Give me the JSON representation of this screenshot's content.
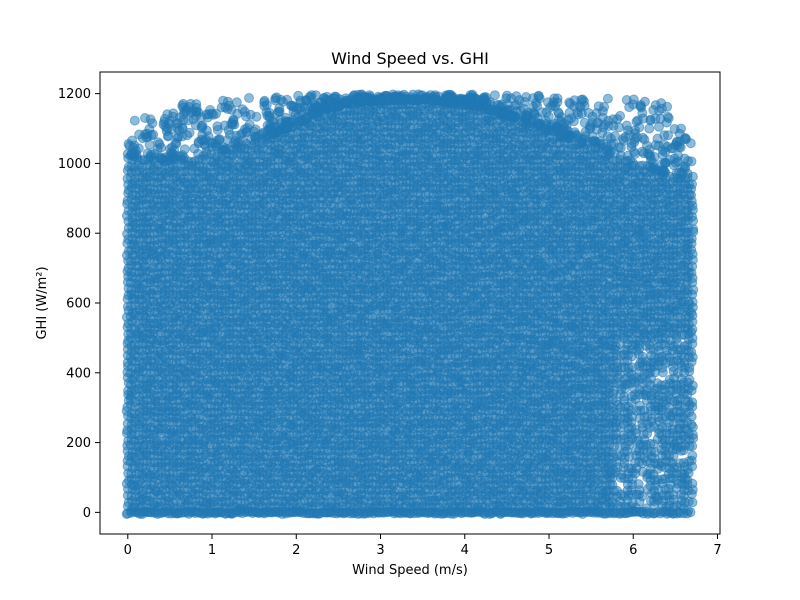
{
  "chart_data": {
    "type": "scatter",
    "title": "Wind Speed vs. GHI",
    "xlabel": "Wind Speed (m/s)",
    "ylabel": "GHI (W/m²)",
    "xlim": [
      -0.33,
      7.03
    ],
    "ylim": [
      -62,
      1262
    ],
    "xticks": [
      0,
      1,
      2,
      3,
      4,
      5,
      6,
      7
    ],
    "yticks": [
      0,
      200,
      400,
      600,
      800,
      1000,
      1200
    ],
    "grid": false,
    "legend": "none",
    "series": [
      {
        "color": "#1f77b4",
        "alpha": 0.5,
        "marker": "circle",
        "x_range": [
          0,
          6.7
        ],
        "y_range": [
          0,
          1200
        ],
        "upper_envelope": [
          [
            0.0,
            1125
          ],
          [
            0.2,
            1130
          ],
          [
            0.4,
            1150
          ],
          [
            0.6,
            1170
          ],
          [
            0.8,
            1175
          ],
          [
            1.0,
            1180
          ],
          [
            1.2,
            1185
          ],
          [
            1.4,
            1190
          ],
          [
            1.6,
            1192
          ],
          [
            1.8,
            1195
          ],
          [
            2.0,
            1195
          ],
          [
            2.5,
            1198
          ],
          [
            3.0,
            1198
          ],
          [
            3.5,
            1198
          ],
          [
            4.0,
            1198
          ],
          [
            4.5,
            1195
          ],
          [
            5.0,
            1195
          ],
          [
            5.5,
            1190
          ],
          [
            5.8,
            1190
          ],
          [
            6.0,
            1185
          ],
          [
            6.2,
            1175
          ],
          [
            6.4,
            1178
          ],
          [
            6.6,
            1090
          ],
          [
            6.7,
            1085
          ]
        ],
        "dense_envelope": [
          [
            0.0,
            1000
          ],
          [
            0.5,
            1010
          ],
          [
            1.0,
            1030
          ],
          [
            1.5,
            1060
          ],
          [
            2.0,
            1110
          ],
          [
            2.3,
            1150
          ],
          [
            2.6,
            1170
          ],
          [
            3.0,
            1180
          ],
          [
            3.5,
            1180
          ],
          [
            4.0,
            1170
          ],
          [
            4.5,
            1140
          ],
          [
            5.0,
            1090
          ],
          [
            5.5,
            1050
          ],
          [
            6.0,
            1000
          ],
          [
            6.3,
            980
          ],
          [
            6.7,
            965
          ]
        ]
      }
    ]
  }
}
